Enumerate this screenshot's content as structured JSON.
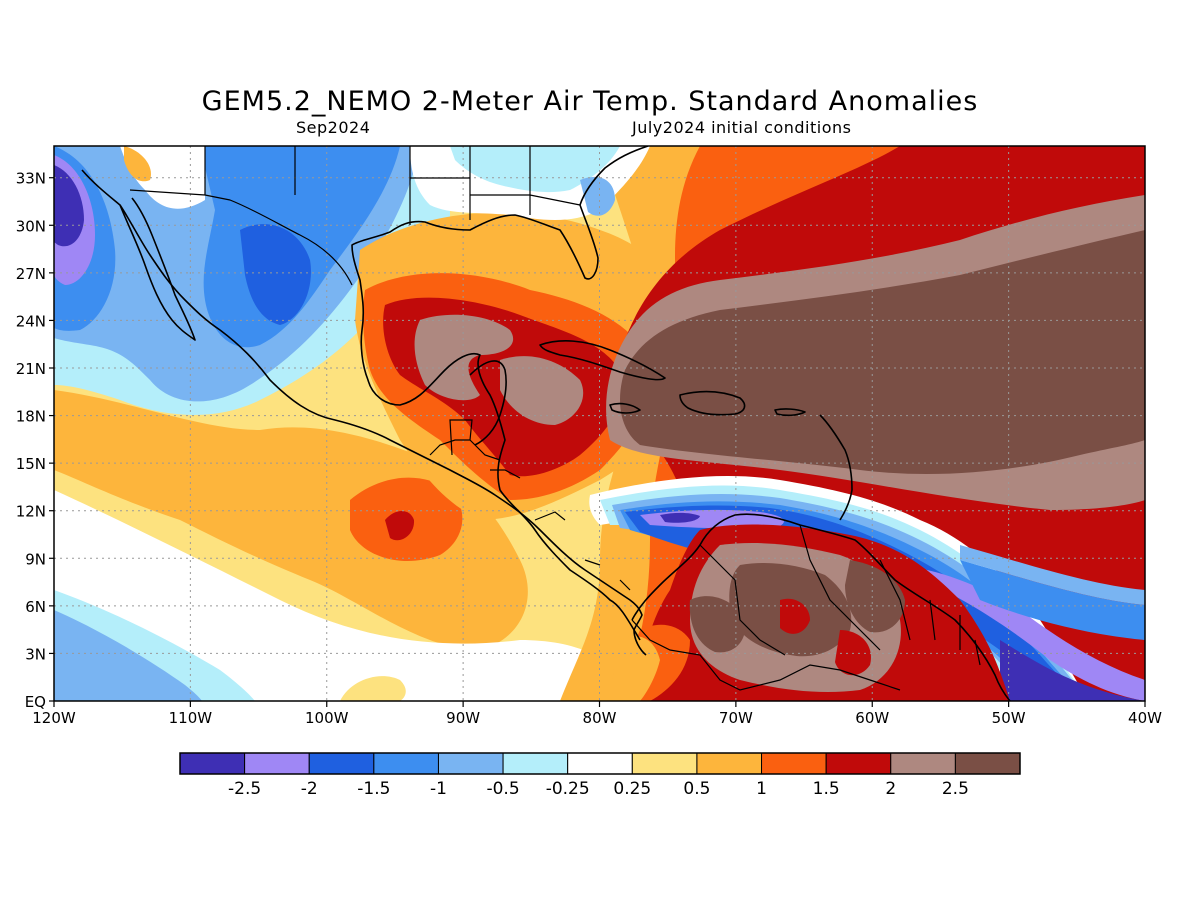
{
  "header": {
    "title": "GEM5.2_NEMO 2-Meter Air Temp. Standard Anomalies",
    "valid_month": "Sep2024",
    "init_conditions": "July2024 initial conditions"
  },
  "map": {
    "lon_range": [
      -120,
      -40
    ],
    "lat_range": [
      0,
      35
    ],
    "lon_ticks": [
      {
        "value": -120,
        "label": "120W"
      },
      {
        "value": -110,
        "label": "110W"
      },
      {
        "value": -100,
        "label": "100W"
      },
      {
        "value": -90,
        "label": "90W"
      },
      {
        "value": -80,
        "label": "80W"
      },
      {
        "value": -70,
        "label": "70W"
      },
      {
        "value": -60,
        "label": "60W"
      },
      {
        "value": -50,
        "label": "50W"
      },
      {
        "value": -40,
        "label": "40W"
      }
    ],
    "lat_ticks": [
      {
        "value": 0,
        "label": "EQ"
      },
      {
        "value": 3,
        "label": "3N"
      },
      {
        "value": 6,
        "label": "6N"
      },
      {
        "value": 9,
        "label": "9N"
      },
      {
        "value": 12,
        "label": "12N"
      },
      {
        "value": 15,
        "label": "15N"
      },
      {
        "value": 18,
        "label": "18N"
      },
      {
        "value": 21,
        "label": "21N"
      },
      {
        "value": 24,
        "label": "24N"
      },
      {
        "value": 27,
        "label": "27N"
      },
      {
        "value": 30,
        "label": "30N"
      },
      {
        "value": 33,
        "label": "33N"
      }
    ]
  },
  "colorbar": {
    "colors": [
      "#3e2fb4",
      "#9f87f5",
      "#1f60e0",
      "#3d8ef0",
      "#79b4f2",
      "#b4eefa",
      "#ffffff",
      "#fde27f",
      "#fdb53c",
      "#fa6010",
      "#c00a0a",
      "#ae8880",
      "#7a4f45"
    ],
    "labels": [
      "-2.5",
      "-2",
      "-1.5",
      "-1",
      "-0.5",
      "-0.25",
      "0.25",
      "0.5",
      "1",
      "1.5",
      "2",
      "2.5"
    ]
  }
}
